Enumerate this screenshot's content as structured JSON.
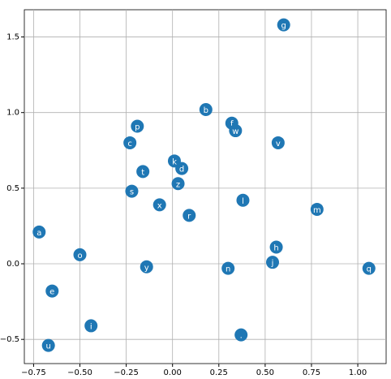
{
  "chart_data": {
    "type": "scatter",
    "color": "#1f77b4",
    "grid": true,
    "labels": [
      "g",
      "b",
      "f",
      "w",
      "v",
      "p",
      "c",
      "k",
      "d",
      "t",
      "z",
      "s",
      "l",
      "x",
      "r",
      "m",
      "a",
      "h",
      "o",
      "j",
      "y",
      "n",
      "q",
      "e",
      "i",
      ".",
      "u"
    ],
    "x": [
      0.6,
      0.18,
      0.32,
      0.34,
      0.57,
      -0.19,
      -0.23,
      0.01,
      0.05,
      -0.16,
      0.03,
      -0.22,
      0.38,
      -0.07,
      0.09,
      0.78,
      -0.72,
      0.56,
      -0.5,
      0.54,
      -0.14,
      0.3,
      1.06,
      -0.65,
      -0.44,
      0.37,
      -0.67
    ],
    "values": [
      1.58,
      1.02,
      0.93,
      0.88,
      0.8,
      0.91,
      0.8,
      0.68,
      0.63,
      0.61,
      0.53,
      0.48,
      0.42,
      0.39,
      0.32,
      0.36,
      0.21,
      0.11,
      0.06,
      0.01,
      -0.02,
      -0.03,
      -0.03,
      -0.18,
      -0.41,
      -0.47,
      -0.54
    ],
    "xlim": [
      -0.8,
      1.153
    ],
    "ylim": [
      -0.66,
      1.68
    ],
    "xticks": [
      {
        "value": -0.75,
        "label": "−0.75"
      },
      {
        "value": -0.5,
        "label": "−0.50"
      },
      {
        "value": -0.25,
        "label": "−0.25"
      },
      {
        "value": 0,
        "label": "0.00"
      },
      0.25,
      {
        "value": 0.5,
        "label": "0.50"
      },
      0.75,
      {
        "value": 1,
        "label": "1.00"
      }
    ],
    "yticks": [
      {
        "value": -0.5,
        "label": "−0.5"
      },
      {
        "value": 0,
        "label": "0.0"
      },
      0.5,
      {
        "value": 1,
        "label": "1.0"
      },
      1.5
    ]
  }
}
